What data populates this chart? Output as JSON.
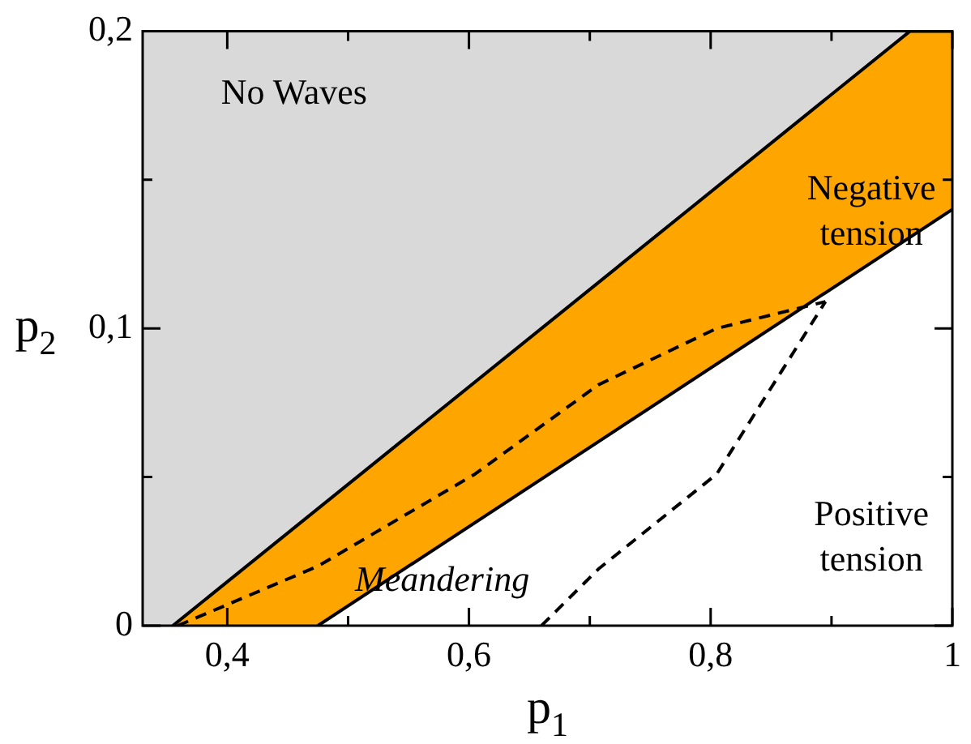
{
  "chart_data": {
    "type": "line",
    "xlabel": "p$_{1}$",
    "ylabel": "p$_{2}$",
    "xlim": [
      0.33,
      1
    ],
    "ylim": [
      0,
      0.2
    ],
    "xticks": [
      {
        "value": 0.4,
        "label": "0,4"
      },
      {
        "value": 0.5,
        "label": null
      },
      {
        "value": 0.6,
        "label": "0,6"
      },
      {
        "value": 0.7,
        "label": null
      },
      {
        "value": 0.8,
        "label": "0,8"
      },
      {
        "value": 0.9,
        "label": null
      },
      1
    ],
    "yticks": [
      0,
      {
        "value": 0.05,
        "label": null
      },
      {
        "value": 0.1,
        "label": "0,1"
      },
      {
        "value": 0.15,
        "label": null
      },
      {
        "value": 0.2,
        "label": "0,2"
      }
    ],
    "bands": [
      {
        "axis": "y",
        "from": 0,
        "to": 0.2,
        "color": "#d9d9d9"
      }
    ],
    "series": [
      {
        "type": "area",
        "color": "#ffa500",
        "x": [
          0.355,
          0.965,
          1
        ],
        "values": [
          0,
          0.2,
          0.2
        ]
      },
      {
        "type": "area",
        "color": "#ffffff",
        "x": [
          0.475,
          1
        ],
        "values": [
          0,
          0.14
        ]
      },
      {
        "type": "line",
        "color": "#000000",
        "line_style": "dashed",
        "x": [
          0.359,
          0.475,
          0.605,
          0.707,
          0.805,
          0.895
        ],
        "values": [
          0,
          0.02,
          0.051,
          0.081,
          0.1,
          0.109
        ]
      },
      {
        "type": "line",
        "color": "#000000",
        "line_style": "dashed",
        "x": [
          0.66,
          0.707,
          0.805,
          0.895
        ],
        "values": [
          0,
          0.019,
          0.051,
          0.109
        ]
      }
    ],
    "annotations": [
      "No Waves",
      "Negative tension",
      "Meandering",
      "Positive tension"
    ],
    "legend": false,
    "marker": "none"
  }
}
